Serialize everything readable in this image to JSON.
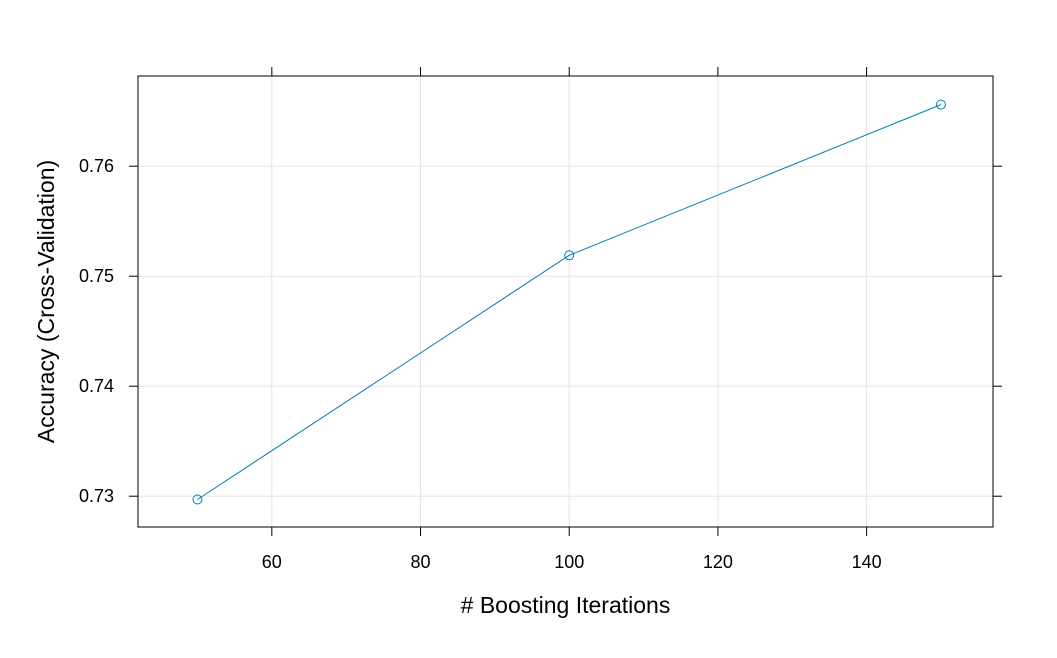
{
  "chart_data": {
    "type": "line",
    "title": "",
    "xlabel": "# Boosting Iterations",
    "ylabel": "Accuracy (Cross-Validation)",
    "x": [
      50,
      100,
      150
    ],
    "series": [
      {
        "values": [
          0.7297,
          0.7519,
          0.7656
        ]
      }
    ],
    "xlim": [
      42,
      157
    ],
    "ylim": [
      0.7272,
      0.7682
    ],
    "xticks": [
      60,
      80,
      100,
      120,
      140
    ],
    "xtick_labels": [
      "60",
      "80",
      "100",
      "120",
      "140"
    ],
    "yticks": [
      0.73,
      0.74,
      0.75,
      0.76
    ],
    "ytick_labels": [
      "0.73",
      "0.74",
      "0.75",
      "0.76"
    ],
    "grid": true,
    "marker": "open-circle",
    "colors": {
      "line": "#0080b0",
      "grid": "#e6e6e6",
      "frame": "#000000"
    }
  }
}
